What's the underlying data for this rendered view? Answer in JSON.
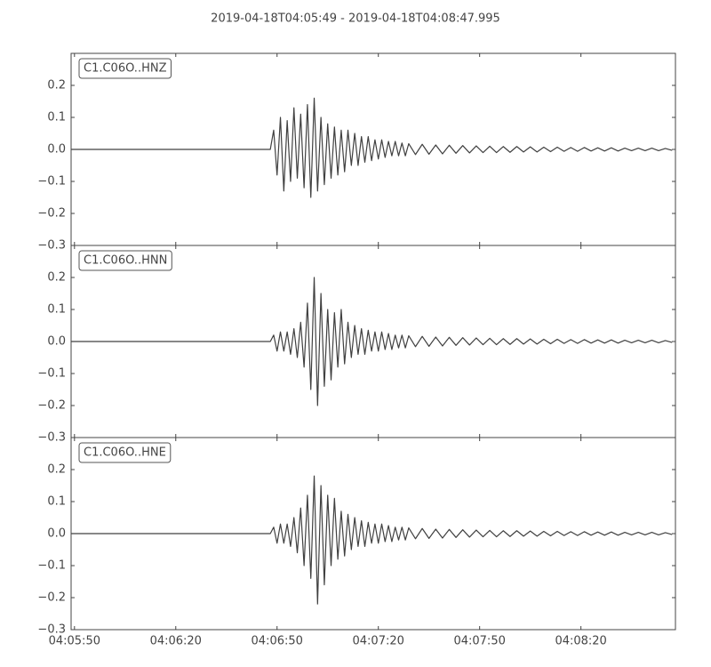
{
  "title": "2019-04-18T04:05:49  -  2019-04-18T04:08:47.995",
  "chart_data": [
    {
      "type": "line",
      "label": "C1.C06O..HNZ",
      "color": "#404040",
      "x": [
        0,
        59,
        60,
        61,
        62,
        63,
        64,
        65,
        66,
        67,
        68,
        69,
        70,
        71,
        72,
        73,
        74,
        75,
        76,
        77,
        78,
        79,
        80,
        81,
        82,
        83,
        84,
        85,
        86,
        87,
        88,
        89,
        90,
        91,
        92,
        93,
        94,
        95,
        96,
        97,
        98,
        99,
        100,
        102,
        104,
        106,
        108,
        110,
        112,
        114,
        116,
        118,
        120,
        122,
        124,
        126,
        128,
        130,
        132,
        134,
        136,
        138,
        140,
        142,
        144,
        146,
        148,
        150,
        152,
        154,
        156,
        158,
        160,
        162,
        164,
        166,
        168,
        170,
        172,
        174,
        176,
        178
      ],
      "values": [
        0,
        0,
        0.06,
        -0.08,
        0.1,
        -0.13,
        0.09,
        -0.1,
        0.13,
        -0.09,
        0.11,
        -0.12,
        0.14,
        -0.15,
        0.16,
        -0.13,
        0.1,
        -0.11,
        0.08,
        -0.09,
        0.07,
        -0.08,
        0.06,
        -0.07,
        0.06,
        -0.05,
        0.05,
        -0.05,
        0.04,
        -0.04,
        0.04,
        -0.035,
        0.03,
        -0.03,
        0.03,
        -0.025,
        0.025,
        -0.02,
        0.025,
        -0.02,
        0.02,
        -0.02,
        0.018,
        -0.016,
        0.016,
        -0.015,
        0.014,
        -0.014,
        0.013,
        -0.012,
        0.012,
        -0.011,
        0.011,
        -0.01,
        0.01,
        -0.01,
        0.009,
        -0.009,
        0.009,
        -0.008,
        0.008,
        -0.008,
        0.007,
        -0.007,
        0.007,
        -0.006,
        0.006,
        -0.006,
        0.006,
        -0.005,
        0.005,
        -0.005,
        0.005,
        -0.005,
        0.004,
        -0.004,
        0.004,
        -0.004,
        0.004,
        -0.004,
        0.003,
        -0.003
      ],
      "xlim": [
        0,
        178.995
      ],
      "ylim": [
        -0.3,
        0.3
      ],
      "yticks": [
        {
          "value": -0.3,
          "label": "−0.3"
        },
        {
          "value": -0.2,
          "label": "−0.2"
        },
        {
          "value": -0.1,
          "label": "−0.1"
        },
        {
          "value": 0,
          "label": "0.0"
        },
        0.1,
        0.2
      ]
    },
    {
      "type": "line",
      "label": "C1.C06O..HNN",
      "color": "#404040",
      "x": [
        0,
        59,
        60,
        61,
        62,
        63,
        64,
        65,
        66,
        67,
        68,
        69,
        70,
        71,
        72,
        73,
        74,
        75,
        76,
        77,
        78,
        79,
        80,
        81,
        82,
        83,
        84,
        85,
        86,
        87,
        88,
        89,
        90,
        91,
        92,
        93,
        94,
        95,
        96,
        97,
        98,
        99,
        100,
        102,
        104,
        106,
        108,
        110,
        112,
        114,
        116,
        118,
        120,
        122,
        124,
        126,
        128,
        130,
        132,
        134,
        136,
        138,
        140,
        142,
        144,
        146,
        148,
        150,
        152,
        154,
        156,
        158,
        160,
        162,
        164,
        166,
        168,
        170,
        172,
        174,
        176,
        178
      ],
      "values": [
        0,
        0,
        0.02,
        -0.03,
        0.03,
        -0.03,
        0.03,
        -0.04,
        0.04,
        -0.05,
        0.06,
        -0.08,
        0.12,
        -0.15,
        0.2,
        -0.2,
        0.15,
        -0.14,
        0.1,
        -0.12,
        0.09,
        -0.08,
        0.1,
        -0.07,
        0.06,
        -0.05,
        0.05,
        -0.04,
        0.04,
        -0.04,
        0.035,
        -0.03,
        0.03,
        -0.03,
        0.03,
        -0.025,
        0.025,
        -0.025,
        0.02,
        -0.02,
        0.02,
        -0.02,
        0.018,
        -0.016,
        0.016,
        -0.015,
        0.014,
        -0.014,
        0.013,
        -0.012,
        0.012,
        -0.011,
        0.011,
        -0.01,
        0.01,
        -0.01,
        0.009,
        -0.009,
        0.009,
        -0.008,
        0.008,
        -0.008,
        0.007,
        -0.007,
        0.007,
        -0.006,
        0.006,
        -0.006,
        0.006,
        -0.005,
        0.005,
        -0.005,
        0.005,
        -0.005,
        0.004,
        -0.004,
        0.004,
        -0.004,
        0.004,
        -0.004,
        0.003,
        -0.003
      ],
      "xlim": [
        0,
        178.995
      ],
      "ylim": [
        -0.3,
        0.3
      ],
      "yticks": [
        {
          "value": -0.3,
          "label": "−0.3"
        },
        {
          "value": -0.2,
          "label": "−0.2"
        },
        {
          "value": -0.1,
          "label": "−0.1"
        },
        {
          "value": 0,
          "label": "0.0"
        },
        0.1,
        0.2
      ]
    },
    {
      "type": "line",
      "label": "C1.C06O..HNE",
      "color": "#404040",
      "x": [
        0,
        59,
        60,
        61,
        62,
        63,
        64,
        65,
        66,
        67,
        68,
        69,
        70,
        71,
        72,
        73,
        74,
        75,
        76,
        77,
        78,
        79,
        80,
        81,
        82,
        83,
        84,
        85,
        86,
        87,
        88,
        89,
        90,
        91,
        92,
        93,
        94,
        95,
        96,
        97,
        98,
        99,
        100,
        102,
        104,
        106,
        108,
        110,
        112,
        114,
        116,
        118,
        120,
        122,
        124,
        126,
        128,
        130,
        132,
        134,
        136,
        138,
        140,
        142,
        144,
        146,
        148,
        150,
        152,
        154,
        156,
        158,
        160,
        162,
        164,
        166,
        168,
        170,
        172,
        174,
        176,
        178
      ],
      "values": [
        0,
        0,
        0.02,
        -0.03,
        0.03,
        -0.03,
        0.03,
        -0.04,
        0.05,
        -0.06,
        0.08,
        -0.1,
        0.12,
        -0.14,
        0.18,
        -0.22,
        0.15,
        -0.16,
        0.12,
        -0.1,
        0.11,
        -0.08,
        0.07,
        -0.07,
        0.06,
        -0.05,
        0.05,
        -0.04,
        0.04,
        -0.04,
        0.035,
        -0.03,
        0.03,
        -0.03,
        0.03,
        -0.025,
        0.025,
        -0.025,
        0.02,
        -0.02,
        0.02,
        -0.02,
        0.018,
        -0.016,
        0.016,
        -0.015,
        0.014,
        -0.014,
        0.013,
        -0.012,
        0.012,
        -0.011,
        0.011,
        -0.01,
        0.01,
        -0.01,
        0.009,
        -0.009,
        0.009,
        -0.008,
        0.008,
        -0.008,
        0.007,
        -0.007,
        0.007,
        -0.006,
        0.006,
        -0.006,
        0.006,
        -0.005,
        0.005,
        -0.005,
        0.005,
        -0.005,
        0.004,
        -0.004,
        0.004,
        -0.004,
        0.004,
        -0.004,
        0.003,
        -0.003
      ],
      "xlim": [
        0,
        178.995
      ],
      "ylim": [
        -0.3,
        0.3
      ],
      "yticks": [
        {
          "value": -0.3,
          "label": "−0.3"
        },
        {
          "value": -0.2,
          "label": "−0.2"
        },
        {
          "value": -0.1,
          "label": "−0.1"
        },
        {
          "value": 0,
          "label": "0.0"
        },
        0.1,
        0.2
      ],
      "xticks": [
        {
          "value": 1,
          "label": "04:05:50"
        },
        {
          "value": 31,
          "label": "04:06:20"
        },
        {
          "value": 61,
          "label": "04:06:50"
        },
        {
          "value": 91,
          "label": "04:07:20"
        },
        {
          "value": 121,
          "label": "04:07:50"
        },
        {
          "value": 151,
          "label": "04:08:20"
        }
      ]
    }
  ]
}
